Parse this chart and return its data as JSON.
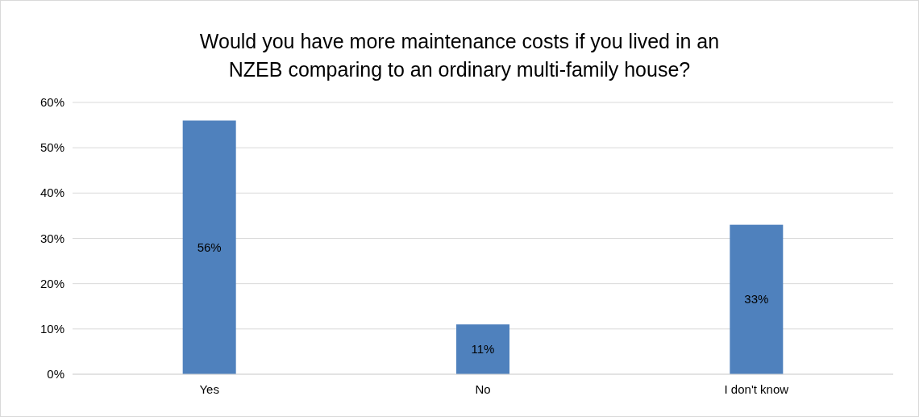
{
  "chart_data": {
    "type": "bar",
    "title": "Would you have more maintenance costs if you lived in an NZEB comparing to an ordinary multi-family house?",
    "categories": [
      "Yes",
      "No",
      "I don't know"
    ],
    "values": [
      56,
      11,
      33
    ],
    "value_labels": [
      "56%",
      "11%",
      "33%"
    ],
    "color": "#4f81bd",
    "ylim": [
      0,
      60
    ],
    "yticks": [
      {
        "value": 0,
        "label": "0%"
      },
      {
        "value": 10,
        "label": "10%"
      },
      {
        "value": 20,
        "label": "20%"
      },
      {
        "value": 30,
        "label": "30%"
      },
      {
        "value": 40,
        "label": "40%"
      },
      {
        "value": 50,
        "label": "50%"
      },
      {
        "value": 60,
        "label": "60%"
      }
    ],
    "grid": true
  }
}
